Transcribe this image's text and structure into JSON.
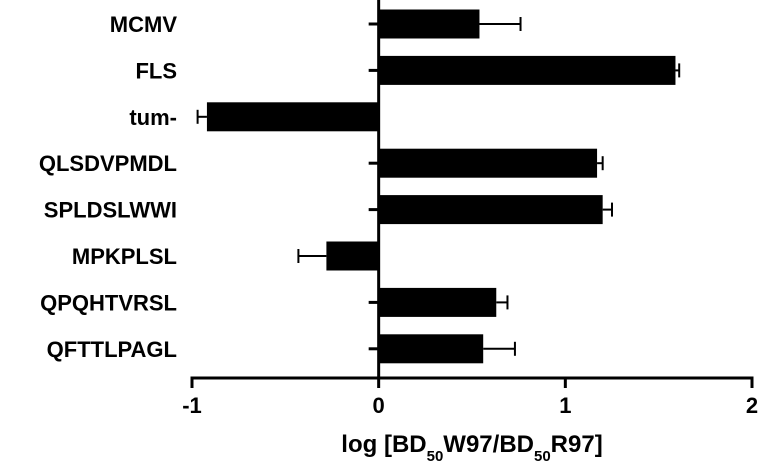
{
  "chart_data": {
    "type": "bar",
    "orientation": "horizontal",
    "categories": [
      "MCMV",
      "FLS",
      "tum-",
      "QLSDVPMDL",
      "SPLDSLWWI",
      "MPKPLSL",
      "QPQHTVRSL",
      "QFTTLPAGL"
    ],
    "values": [
      0.54,
      1.59,
      -0.92,
      1.17,
      1.2,
      -0.28,
      0.63,
      0.56
    ],
    "errors": [
      0.22,
      0.02,
      0.05,
      0.03,
      0.05,
      0.15,
      0.06,
      0.17
    ],
    "xlim": [
      -1,
      2
    ],
    "xticks": [
      "-1",
      "0",
      "1",
      "2"
    ],
    "xlabel": {
      "prefix": "log [BD",
      "sub1": "50",
      "mid": "W97/BD",
      "sub2": "50",
      "suffix": "R97]"
    },
    "ylabel": "",
    "grid": false,
    "bar_color": "#000000"
  }
}
